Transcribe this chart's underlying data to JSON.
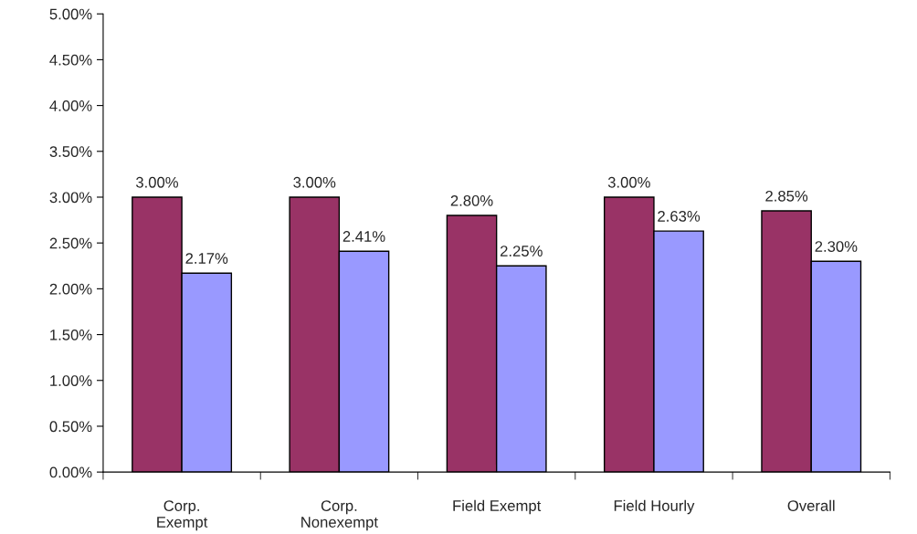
{
  "chart_data": {
    "type": "bar",
    "categories": [
      "Corp.\nExempt",
      "Corp.\nNonexempt",
      "Field Exempt",
      "Field Hourly",
      "Overall"
    ],
    "series": [
      {
        "color": "#993366",
        "values": [
          3.0,
          3.0,
          2.8,
          3.0,
          2.85
        ],
        "value_labels": [
          "3.00%",
          "3.00%",
          "2.80%",
          "3.00%",
          "2.85%"
        ]
      },
      {
        "color": "#9999ff",
        "values": [
          2.17,
          2.41,
          2.25,
          2.63,
          2.3
        ],
        "value_labels": [
          "2.17%",
          "2.41%",
          "2.25%",
          "2.63%",
          "2.30%"
        ]
      }
    ],
    "ylim": [
      0,
      5
    ],
    "yticks": [
      {
        "value": 0,
        "label": "0.00%"
      },
      {
        "value": 0.5,
        "label": "0.50%"
      },
      {
        "value": 1,
        "label": "1.00%"
      },
      {
        "value": 1.5,
        "label": "1.50%"
      },
      {
        "value": 2,
        "label": "2.00%"
      },
      {
        "value": 2.5,
        "label": "2.50%"
      },
      {
        "value": 3,
        "label": "3.00%"
      },
      {
        "value": 3.5,
        "label": "3.50%"
      },
      {
        "value": 4,
        "label": "4.00%"
      },
      {
        "value": 4.5,
        "label": "4.50%"
      },
      {
        "value": 5,
        "label": "5.00%"
      }
    ],
    "grid": false
  }
}
